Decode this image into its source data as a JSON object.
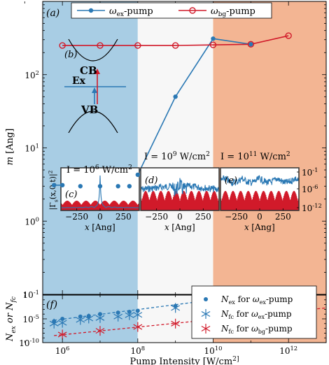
{
  "chart_data": [
    {
      "panel": "(a)",
      "type": "line",
      "x_scale": "log",
      "y_scale": "log",
      "xlim": [
        300000,
        10000000000000
      ],
      "ylim": [
        0.1,
        1000
      ],
      "ylabel": "m [Ang]",
      "ytick_labels": [
        "10^{-1}",
        "10^{0}",
        "10^{1}",
        "10^{2}"
      ],
      "legend_position": "top",
      "series": [
        {
          "name": "ω_ex-pump",
          "legend_main": "ω",
          "legend_sub": "ex",
          "legend_suffix": "-pump",
          "color": "#2a78b4",
          "marker": "filled-circle",
          "x": [
            600000,
            1000000,
            3000000,
            10000000,
            30000000,
            60000000,
            100000000,
            1000000000,
            10000000000,
            100000000000
          ],
          "y": [
            3.1,
            3.1,
            3.0,
            3.0,
            3.0,
            3.0,
            4.3,
            50,
            310,
            260
          ]
        },
        {
          "name": "ω_bg-pump",
          "legend_main": "ω",
          "legend_sub": "bg",
          "legend_suffix": "-pump",
          "color": "#d11a2a",
          "marker": "open-circle",
          "x": [
            1000000,
            10000000,
            100000000,
            1000000000,
            10000000000,
            100000000000,
            1000000000000
          ],
          "y": [
            250,
            250,
            250,
            250,
            255,
            260,
            340
          ]
        }
      ],
      "regions": [
        {
          "from": 300000,
          "to": 100000000,
          "color": "#a8cde4"
        },
        {
          "from": 100000000,
          "to": 10000000000,
          "color": "#f7f7f7"
        },
        {
          "from": 10000000000,
          "to": 10000000000000,
          "color": "#f3b593"
        }
      ],
      "annotations": [
        {
          "text": "I = 10^9 W/cm^2"
        },
        {
          "text": "I = 10^11 W/cm^2"
        }
      ]
    },
    {
      "panel": "(b)",
      "type": "diagram",
      "labels": [
        "CB",
        "Ex",
        "VB"
      ]
    },
    {
      "panel": "(c)",
      "type": "line",
      "title": "I = 10^6 W/cm^2",
      "ylabel": "|Γ_s(x,0,t)|^2",
      "xlabel": "x [Ang]",
      "x_ticks": [
        -250,
        0,
        250
      ],
      "xlim": [
        -420,
        420
      ],
      "y_scale": "log"
    },
    {
      "panel": "(d)",
      "type": "line",
      "xlabel": "x [Ang]",
      "x_ticks": [
        -250,
        0,
        250
      ],
      "xlim": [
        -420,
        420
      ],
      "y_scale": "log"
    },
    {
      "panel": "(e)",
      "type": "line",
      "xlabel": "x [Ang]",
      "x_ticks": [
        -250,
        0,
        250
      ],
      "xlim": [
        -420,
        420
      ],
      "y_scale": "log",
      "ytick_labels": [
        "10^{-1}",
        "10^{-6}",
        "10^{-12}"
      ]
    },
    {
      "panel": "(f)",
      "type": "scatter",
      "x_scale": "log",
      "y_scale": "log",
      "xlim": [
        300000,
        10000000000000
      ],
      "ylim": [
        1e-10,
        1
      ],
      "xlabel": "Pump Intensity [W/cm^2]",
      "ylabel": "N_ex or N_fc",
      "xtick_labels": [
        "10^{6}",
        "10^{8}",
        "10^{10}",
        "10^{12}"
      ],
      "ytick_labels": [
        "10^{-10}",
        "10^{-5}"
      ],
      "legend_position": "bottom-right",
      "series": [
        {
          "name": "N_ex for ω_ex-pump",
          "legend": [
            {
              "t": "N",
              "s": "ex"
            },
            {
              "t": " for "
            },
            {
              "t": "ω",
              "s": "ex"
            },
            {
              "t": "-pump"
            }
          ],
          "color": "#2a78b4",
          "marker": "dot",
          "x": [
            600000,
            1000000,
            3000000,
            5000000,
            10000000,
            30000000,
            60000000,
            100000000,
            1000000000,
            10000000000,
            100000000000
          ],
          "y": [
            3e-06,
            1e-05,
            3e-05,
            4e-05,
            0.0001,
            0.0002,
            0.0003,
            0.0005,
            0.005,
            0.003,
            0.05
          ]
        },
        {
          "name": "N_fc for ω_ex-pump",
          "legend": [
            {
              "t": "N",
              "s": "fc"
            },
            {
              "t": " for "
            },
            {
              "t": "ω",
              "s": "ex"
            },
            {
              "t": "-pump"
            }
          ],
          "color": "#2a78b4",
          "marker": "asterisk",
          "x": [
            600000,
            1000000,
            3000000,
            5000000,
            10000000,
            30000000,
            60000000,
            100000000,
            1000000000,
            10000000000,
            100000000000
          ],
          "y": [
            1e-06,
            1.5e-06,
            6e-06,
            1.2e-05,
            1.5e-05,
            3e-05,
            6e-05,
            7e-05,
            0.002,
            0.01,
            0.05
          ]
        },
        {
          "name": "N_fc for ω_bg-pump",
          "legend": [
            {
              "t": "N",
              "s": "fc"
            },
            {
              "t": " for "
            },
            {
              "t": "ω",
              "s": "bg"
            },
            {
              "t": "-pump"
            }
          ],
          "color": "#d11a2a",
          "marker": "asterisk",
          "x": [
            1000000,
            10000000,
            100000000,
            1000000000,
            10000000000,
            100000000000,
            1000000000000
          ],
          "y": [
            5e-09,
            3e-08,
            2e-07,
            1e-06,
            6e-06,
            4e-05,
            0.0003
          ]
        }
      ],
      "fits": [
        {
          "color": "#2a78b4",
          "x": [
            600000,
            10000000000
          ],
          "y": [
            5e-06,
            0.1
          ]
        },
        {
          "color": "#d11a2a",
          "x": [
            600000,
            10000000000000
          ],
          "y": [
            3e-09,
            0.002
          ]
        }
      ]
    }
  ]
}
